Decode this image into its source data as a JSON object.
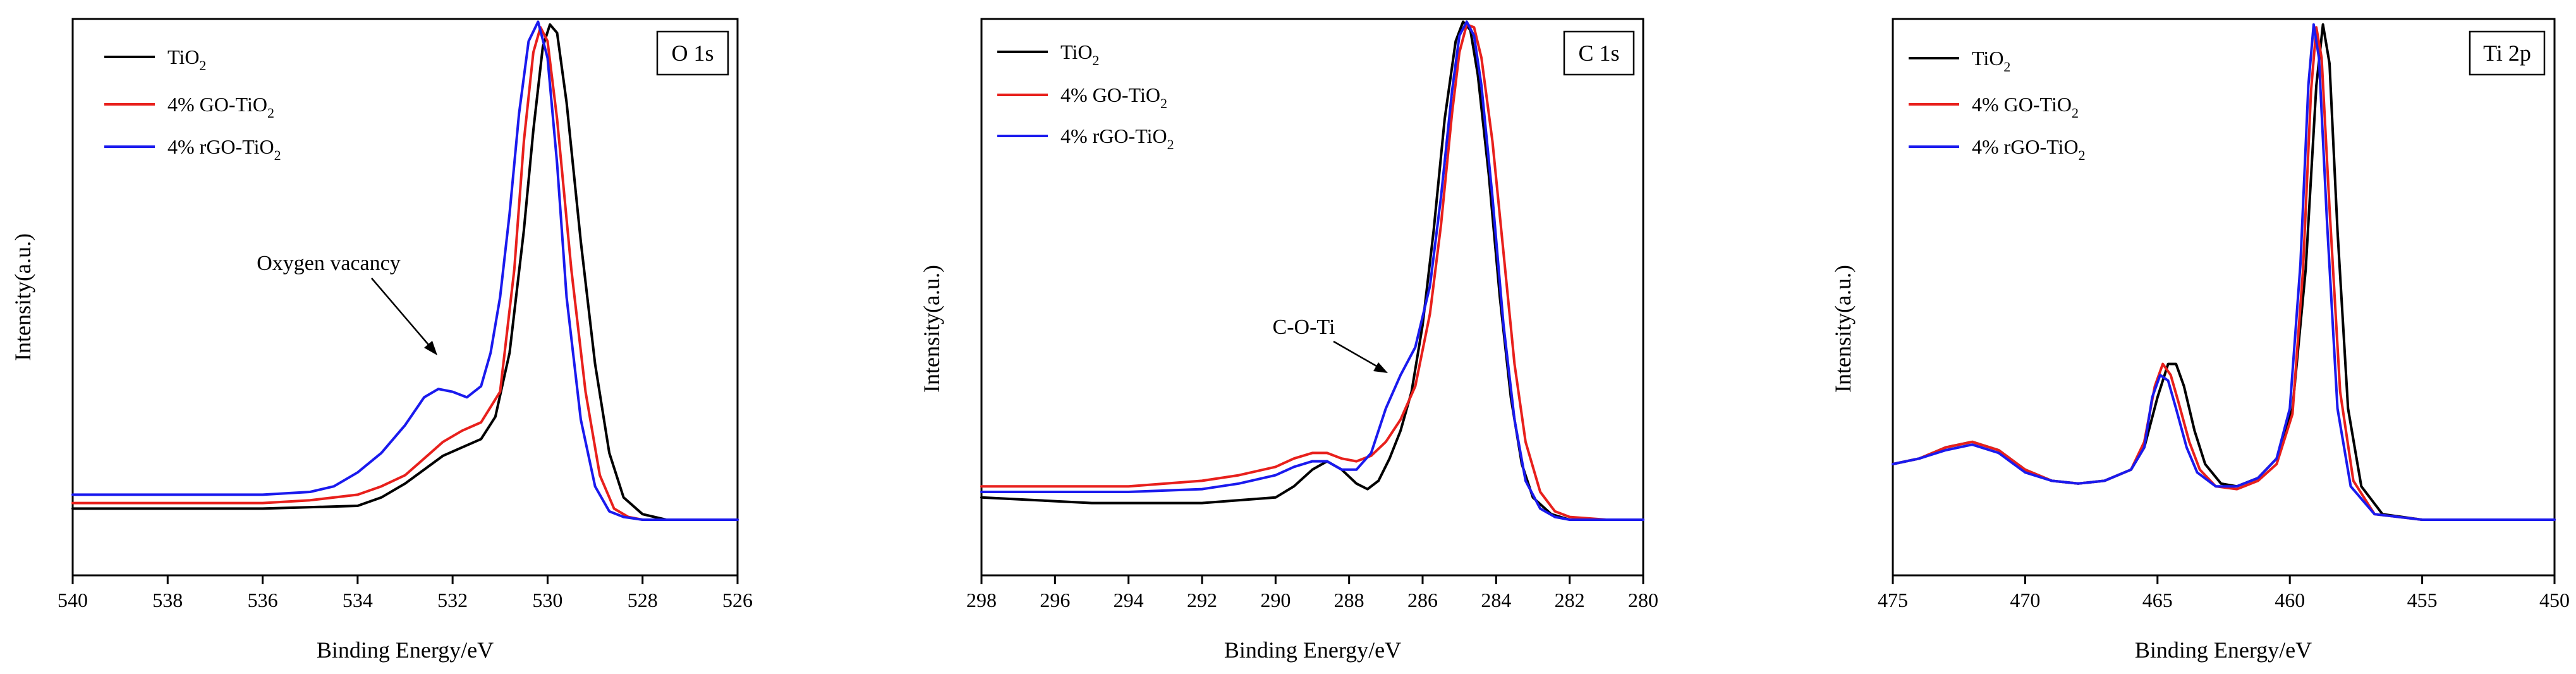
{
  "colors": {
    "TiO2": "#000000",
    "GO": "#e8201c",
    "rGO": "#1a1aee"
  },
  "chart_data": [
    {
      "type": "line",
      "panel_label": "O 1s",
      "xlabel": "Binding Energy/eV",
      "ylabel": "Intensity(a.u.)",
      "xlim": [
        540,
        526
      ],
      "ylim": [
        0,
        1
      ],
      "reversed_x": true,
      "xticks": [
        "540",
        "538",
        "536",
        "534",
        "532",
        "530",
        "528",
        "526"
      ],
      "legend": {
        "position": "top-left",
        "entries": [
          {
            "base": "TiO",
            "sub": "2",
            "color_key": "TiO2"
          },
          {
            "base": "4% GO-TiO",
            "sub": "2",
            "color_key": "GO"
          },
          {
            "base": "4% rGO-TiO",
            "sub": "2",
            "color_key": "rGO"
          }
        ]
      },
      "annotation": {
        "text": "Oxygen vacancy",
        "target_x": 532.2,
        "target_y": 0.33
      },
      "series": [
        {
          "name": "TiO2",
          "color_key": "TiO2",
          "x": [
            540,
            536,
            534,
            533.5,
            533,
            532.6,
            532.2,
            531.8,
            531.4,
            531.1,
            530.8,
            530.5,
            530.3,
            530.1,
            529.95,
            529.8,
            529.6,
            529.3,
            529.0,
            528.7,
            528.4,
            528.0,
            527.5,
            527.0,
            526.5,
            526
          ],
          "y": [
            0.12,
            0.12,
            0.125,
            0.14,
            0.165,
            0.19,
            0.215,
            0.23,
            0.245,
            0.285,
            0.4,
            0.62,
            0.8,
            0.95,
            0.99,
            0.975,
            0.85,
            0.6,
            0.38,
            0.22,
            0.14,
            0.11,
            0.1,
            0.1,
            0.1,
            0.1
          ]
        },
        {
          "name": "4% GO-TiO2",
          "color_key": "GO",
          "x": [
            540,
            536,
            535,
            534,
            533.5,
            533,
            532.6,
            532.2,
            531.8,
            531.4,
            531.0,
            530.7,
            530.5,
            530.3,
            530.15,
            530.0,
            529.8,
            529.5,
            529.2,
            528.9,
            528.6,
            528.3,
            528.0,
            527.5,
            527.0,
            526
          ],
          "y": [
            0.13,
            0.13,
            0.135,
            0.145,
            0.16,
            0.18,
            0.21,
            0.24,
            0.26,
            0.275,
            0.33,
            0.55,
            0.78,
            0.94,
            0.985,
            0.96,
            0.82,
            0.55,
            0.33,
            0.18,
            0.12,
            0.105,
            0.1,
            0.1,
            0.1,
            0.1
          ]
        },
        {
          "name": "4% rGO-TiO2",
          "color_key": "rGO",
          "x": [
            540,
            536,
            535,
            534.5,
            534,
            533.5,
            533.0,
            532.6,
            532.3,
            532.0,
            531.7,
            531.4,
            531.2,
            531.0,
            530.8,
            530.6,
            530.4,
            530.2,
            530.0,
            529.8,
            529.6,
            529.3,
            529.0,
            528.7,
            528.4,
            528.0,
            527.5,
            527.0,
            526
          ],
          "y": [
            0.145,
            0.145,
            0.15,
            0.16,
            0.185,
            0.22,
            0.27,
            0.32,
            0.335,
            0.33,
            0.32,
            0.34,
            0.4,
            0.5,
            0.65,
            0.83,
            0.96,
            0.995,
            0.93,
            0.74,
            0.5,
            0.28,
            0.16,
            0.115,
            0.105,
            0.1,
            0.1,
            0.1,
            0.1
          ]
        }
      ]
    },
    {
      "type": "line",
      "panel_label": "C 1s",
      "xlabel": "Binding Energy/eV",
      "ylabel": "Intensity(a.u.)",
      "xlim": [
        298,
        280
      ],
      "ylim": [
        0,
        1
      ],
      "reversed_x": true,
      "xticks": [
        "298",
        "296",
        "294",
        "292",
        "290",
        "288",
        "286",
        "284",
        "282",
        "280"
      ],
      "legend": {
        "position": "top-left",
        "entries": [
          {
            "base": "TiO",
            "sub": "2",
            "color_key": "TiO2"
          },
          {
            "base": "4% GO-TiO",
            "sub": "2",
            "color_key": "GO"
          },
          {
            "base": "4% rGO-TiO",
            "sub": "2",
            "color_key": "rGO"
          }
        ]
      },
      "annotation": {
        "text": "C-O-Ti",
        "target_x": 286.8,
        "target_y": 0.35
      },
      "series": [
        {
          "name": "TiO2",
          "color_key": "TiO2",
          "x": [
            298,
            295,
            292,
            290,
            289.5,
            289,
            288.6,
            288.2,
            287.8,
            287.5,
            287.2,
            286.9,
            286.6,
            286.3,
            286.0,
            285.7,
            285.4,
            285.1,
            284.9,
            284.7,
            284.5,
            284.2,
            283.9,
            283.6,
            283.3,
            283.0,
            282.5,
            282.0,
            281,
            280
          ],
          "y": [
            0.14,
            0.13,
            0.13,
            0.14,
            0.16,
            0.19,
            0.205,
            0.19,
            0.165,
            0.155,
            0.17,
            0.21,
            0.26,
            0.33,
            0.45,
            0.62,
            0.82,
            0.96,
            0.995,
            0.98,
            0.9,
            0.72,
            0.5,
            0.32,
            0.2,
            0.14,
            0.11,
            0.1,
            0.1,
            0.1
          ]
        },
        {
          "name": "4% GO-TiO2",
          "color_key": "GO",
          "x": [
            298,
            294,
            292,
            291,
            290,
            289.5,
            289,
            288.6,
            288.2,
            287.8,
            287.4,
            287.0,
            286.6,
            286.2,
            285.8,
            285.5,
            285.2,
            285.0,
            284.8,
            284.6,
            284.4,
            284.1,
            283.8,
            283.5,
            283.2,
            282.8,
            282.4,
            282.0,
            281,
            280
          ],
          "y": [
            0.16,
            0.16,
            0.17,
            0.18,
            0.195,
            0.21,
            0.22,
            0.22,
            0.21,
            0.205,
            0.215,
            0.24,
            0.28,
            0.34,
            0.47,
            0.63,
            0.83,
            0.94,
            0.99,
            0.985,
            0.93,
            0.78,
            0.58,
            0.38,
            0.24,
            0.15,
            0.115,
            0.105,
            0.1,
            0.1
          ]
        },
        {
          "name": "4% rGO-TiO2",
          "color_key": "rGO",
          "x": [
            298,
            294,
            292,
            291,
            290,
            289.5,
            289,
            288.6,
            288.2,
            287.8,
            287.4,
            287.0,
            286.6,
            286.2,
            285.8,
            285.5,
            285.2,
            285.0,
            284.8,
            284.6,
            284.4,
            284.1,
            283.8,
            283.5,
            283.2,
            282.8,
            282.4,
            282.0,
            281,
            280
          ],
          "y": [
            0.15,
            0.15,
            0.155,
            0.165,
            0.18,
            0.195,
            0.205,
            0.205,
            0.19,
            0.19,
            0.22,
            0.3,
            0.36,
            0.41,
            0.52,
            0.68,
            0.87,
            0.97,
            0.995,
            0.97,
            0.88,
            0.68,
            0.45,
            0.28,
            0.17,
            0.12,
            0.105,
            0.1,
            0.1,
            0.1
          ]
        }
      ]
    },
    {
      "type": "line",
      "panel_label": "Ti 2p",
      "xlabel": "Binding Energy/eV",
      "ylabel": "Intensity(a.u.)",
      "xlim": [
        475,
        450
      ],
      "ylim": [
        0,
        1
      ],
      "reversed_x": true,
      "xticks": [
        "475",
        "470",
        "465",
        "460",
        "455",
        "450"
      ],
      "legend": {
        "position": "top-left",
        "entries": [
          {
            "base": "TiO",
            "sub": "2",
            "color_key": "TiO2"
          },
          {
            "base": "4% GO-TiO",
            "sub": "2",
            "color_key": "GO"
          },
          {
            "base": "4% rGO-TiO",
            "sub": "2",
            "color_key": "rGO"
          }
        ]
      },
      "series": [
        {
          "name": "TiO2",
          "color_key": "TiO2",
          "x": [
            475,
            474,
            473,
            472,
            471,
            470,
            469,
            468,
            467,
            466,
            465.5,
            465,
            464.6,
            464.3,
            464,
            463.6,
            463.2,
            462.6,
            462,
            461.2,
            460.5,
            459.9,
            459.4,
            459.0,
            458.75,
            458.5,
            458.2,
            457.8,
            457.3,
            456.5,
            455,
            452,
            450
          ],
          "y": [
            0.2,
            0.21,
            0.23,
            0.24,
            0.225,
            0.19,
            0.17,
            0.165,
            0.17,
            0.19,
            0.23,
            0.32,
            0.38,
            0.38,
            0.34,
            0.26,
            0.2,
            0.165,
            0.16,
            0.175,
            0.21,
            0.3,
            0.55,
            0.88,
            0.99,
            0.92,
            0.62,
            0.3,
            0.16,
            0.11,
            0.1,
            0.1,
            0.1
          ]
        },
        {
          "name": "4% GO-TiO2",
          "color_key": "GO",
          "x": [
            475,
            474,
            473,
            472,
            471,
            470,
            469,
            468,
            467,
            466,
            465.5,
            465.1,
            464.8,
            464.5,
            464.2,
            463.8,
            463.4,
            462.8,
            462,
            461.2,
            460.5,
            459.9,
            459.5,
            459.2,
            459.0,
            458.8,
            458.5,
            458.1,
            457.6,
            456.8,
            455,
            452,
            450
          ],
          "y": [
            0.2,
            0.21,
            0.23,
            0.24,
            0.225,
            0.19,
            0.17,
            0.165,
            0.17,
            0.19,
            0.24,
            0.34,
            0.38,
            0.36,
            0.31,
            0.24,
            0.19,
            0.16,
            0.155,
            0.17,
            0.2,
            0.29,
            0.55,
            0.87,
            0.985,
            0.93,
            0.66,
            0.33,
            0.17,
            0.11,
            0.1,
            0.1,
            0.1
          ]
        },
        {
          "name": "4% rGO-TiO2",
          "color_key": "rGO",
          "x": [
            475,
            474,
            473,
            472,
            471,
            470,
            469,
            468,
            467,
            466,
            465.5,
            465.2,
            464.9,
            464.6,
            464.3,
            463.9,
            463.5,
            462.8,
            462,
            461.2,
            460.5,
            460.0,
            459.6,
            459.3,
            459.1,
            458.9,
            458.6,
            458.2,
            457.7,
            456.8,
            455,
            452,
            450
          ],
          "y": [
            0.2,
            0.21,
            0.225,
            0.235,
            0.22,
            0.185,
            0.17,
            0.165,
            0.17,
            0.19,
            0.23,
            0.32,
            0.36,
            0.35,
            0.3,
            0.23,
            0.185,
            0.16,
            0.16,
            0.175,
            0.21,
            0.3,
            0.56,
            0.88,
            0.99,
            0.93,
            0.64,
            0.3,
            0.16,
            0.11,
            0.1,
            0.1,
            0.1
          ]
        }
      ]
    }
  ]
}
